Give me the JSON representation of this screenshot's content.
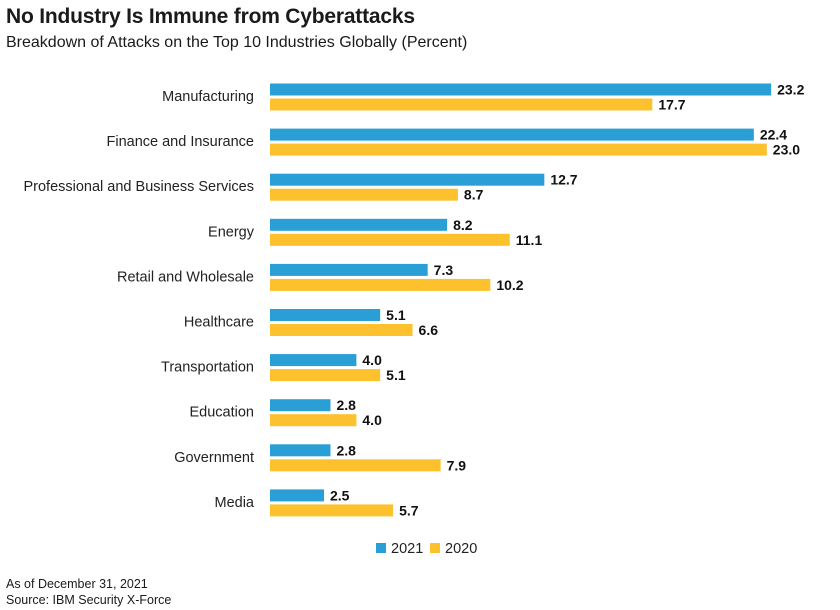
{
  "header": {
    "title": "No Industry Is Immune from Cyberattacks",
    "subtitle": "Breakdown of Attacks on the Top 10 Industries Globally (Percent)"
  },
  "footer": {
    "as_of": "As of December 31, 2021",
    "source": "Source: IBM Security X-Force"
  },
  "colors": {
    "series_2021": "#2a9fd6",
    "series_2020": "#fcc12d",
    "text": "#1a1a1a"
  },
  "chart_data": {
    "type": "bar",
    "orientation": "horizontal",
    "title": "No Industry Is Immune from Cyberattacks",
    "subtitle": "Breakdown of Attacks on the Top 10 Industries Globally (Percent)",
    "categories": [
      "Manufacturing",
      "Finance and Insurance",
      "Professional and Business Services",
      "Energy",
      "Retail and Wholesale",
      "Healthcare",
      "Transportation",
      "Education",
      "Government",
      "Media"
    ],
    "series": [
      {
        "name": "2021",
        "color": "#2a9fd6",
        "values": [
          23.2,
          22.4,
          12.7,
          8.2,
          7.3,
          5.1,
          4.0,
          2.8,
          2.8,
          2.5
        ],
        "labels": [
          "23.2",
          "22.4",
          "12.7",
          "8.2",
          "7.3",
          "5.1",
          "4.0",
          "2.8",
          "2.8",
          "2.5"
        ]
      },
      {
        "name": "2020",
        "color": "#fcc12d",
        "values": [
          17.7,
          23.0,
          8.7,
          11.1,
          10.2,
          6.6,
          5.1,
          4.0,
          7.9,
          5.7
        ],
        "labels": [
          "17.7",
          "23.0",
          "8.7",
          "11.1",
          "10.2",
          "6.6",
          "5.1",
          "4.0",
          "7.9",
          "5.7"
        ]
      }
    ],
    "xlim": [
      0,
      23.2
    ],
    "grid": false,
    "legend": "bottom-center",
    "data_labels": true
  }
}
